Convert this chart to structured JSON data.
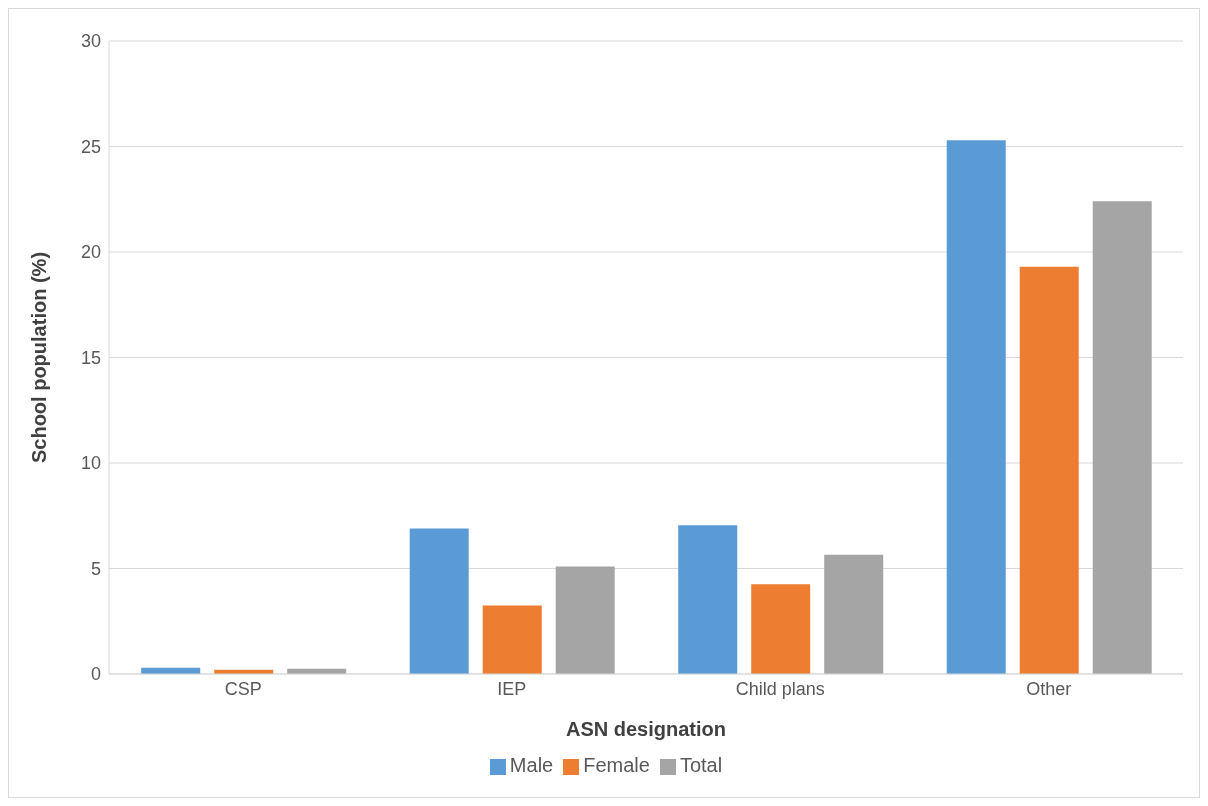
{
  "chart_data": {
    "type": "bar",
    "xlabel": "ASN designation",
    "ylabel": "School population (%)",
    "categories": [
      "CSP",
      "IEP",
      "Child plans",
      "Other"
    ],
    "series": [
      {
        "name": "Male",
        "color": "#5b9bd5",
        "values": [
          0.3,
          6.9,
          7.05,
          25.3
        ]
      },
      {
        "name": "Female",
        "color": "#ed7d31",
        "values": [
          0.2,
          3.25,
          4.25,
          19.3
        ]
      },
      {
        "name": "Total",
        "color": "#a5a5a5",
        "values": [
          0.25,
          5.1,
          5.65,
          22.4
        ]
      }
    ],
    "ylim": [
      0,
      30
    ],
    "yticks": [
      0,
      5,
      10,
      15,
      20,
      25,
      30
    ],
    "grid": "y",
    "legend": "bottom"
  }
}
